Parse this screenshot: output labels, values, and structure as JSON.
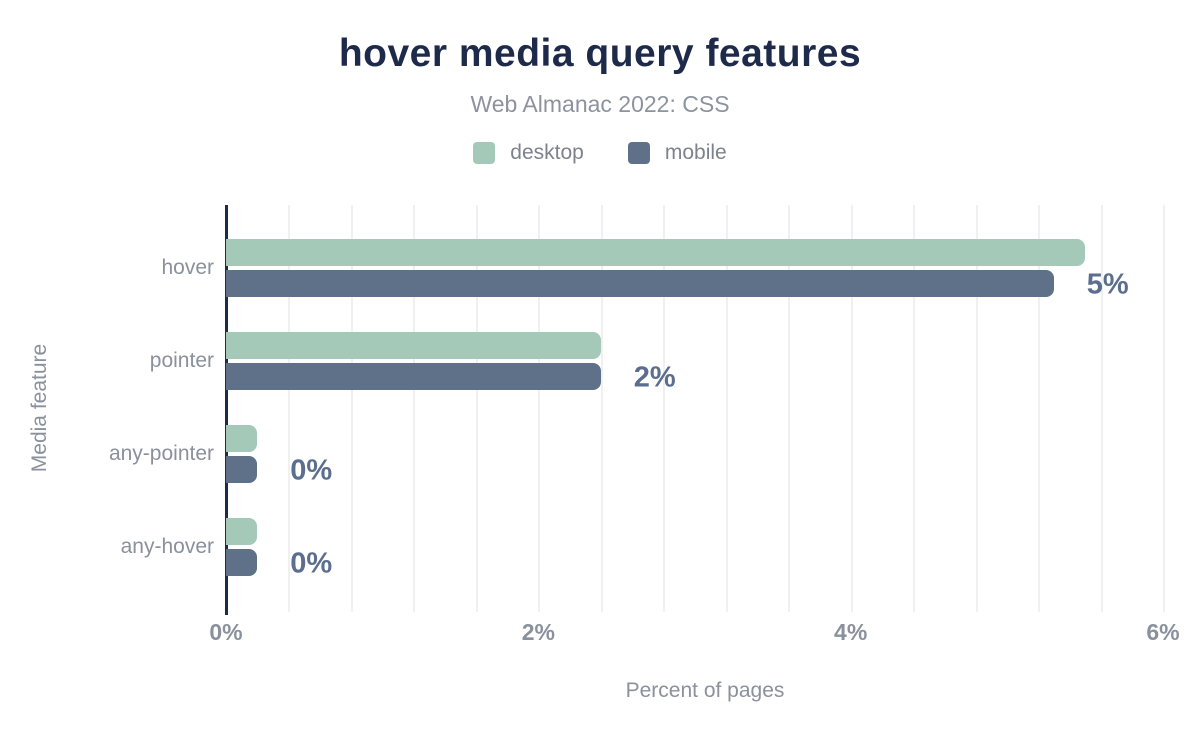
{
  "header": {
    "title": "hover media query features",
    "subtitle": "Web Almanac 2022: CSS"
  },
  "legend": {
    "items": [
      {
        "label": "desktop",
        "color": "#a4c9b8"
      },
      {
        "label": "mobile",
        "color": "#5f7189"
      }
    ]
  },
  "chart_data": {
    "type": "bar",
    "orientation": "horizontal",
    "title": "hover media query features",
    "subtitle": "Web Almanac 2022: CSS",
    "categories": [
      "hover",
      "pointer",
      "any-pointer",
      "any-hover"
    ],
    "series": [
      {
        "name": "desktop",
        "color": "#a4c9b8",
        "values": [
          5.5,
          2.4,
          0.2,
          0.2
        ]
      },
      {
        "name": "mobile",
        "color": "#5f7189",
        "values": [
          5.3,
          2.4,
          0.2,
          0.2
        ]
      }
    ],
    "value_labels": [
      "5%",
      "2%",
      "0%",
      "0%"
    ],
    "xlabel": "Percent of pages",
    "ylabel": "Media feature",
    "x_ticks": [
      {
        "value": 0,
        "label": "0%"
      },
      {
        "value": 2,
        "label": "2%"
      },
      {
        "value": 4,
        "label": "4%"
      },
      {
        "value": 6,
        "label": "6%"
      }
    ],
    "xlim": [
      0,
      6.15
    ],
    "grid": {
      "show": true,
      "minor_step": 0.4
    },
    "legend_position": "top",
    "colors": {
      "title": "#1e2a4a",
      "subtitle": "#8d939e",
      "axis_line": "#1b2b4a",
      "gridline": "#f0f0f1",
      "value_label": "#5b6e8e",
      "tick_label": "#8a919c",
      "category_label": "#8a919c",
      "axis_title": "#8a919c",
      "background": "#ffffff"
    }
  }
}
